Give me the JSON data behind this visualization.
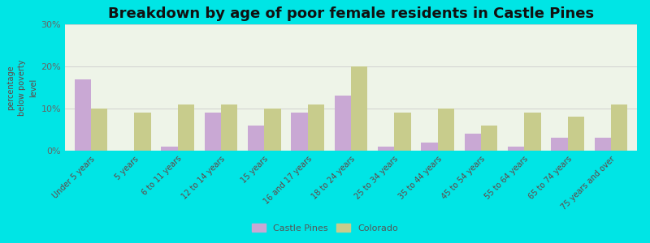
{
  "title": "Breakdown by age of poor female residents in Castle Pines",
  "categories": [
    "Under 5 years",
    "5 years",
    "6 to 11 years",
    "12 to 14 years",
    "15 years",
    "16 and 17 years",
    "18 to 24 years",
    "25 to 34 years",
    "35 to 44 years",
    "45 to 54 years",
    "55 to 64 years",
    "65 to 74 years",
    "75 years and over"
  ],
  "castle_pines": [
    17,
    0,
    1,
    9,
    6,
    9,
    13,
    1,
    2,
    4,
    1,
    3,
    3
  ],
  "colorado": [
    10,
    9,
    11,
    11,
    10,
    11,
    20,
    9,
    10,
    6,
    9,
    8,
    11
  ],
  "castle_pines_color": "#c9a8d4",
  "colorado_color": "#c8cc8c",
  "background_outer": "#00e5e5",
  "background_plot": "#eef4e8",
  "ylabel": "percentage\nbelow poverty\nlevel",
  "ylim": [
    0,
    30
  ],
  "yticks": [
    0,
    10,
    20,
    30
  ],
  "ytick_labels": [
    "0%",
    "10%",
    "20%",
    "30%"
  ],
  "title_fontsize": 13,
  "bar_width": 0.38,
  "legend_castle_pines": "Castle Pines",
  "legend_colorado": "Colorado"
}
